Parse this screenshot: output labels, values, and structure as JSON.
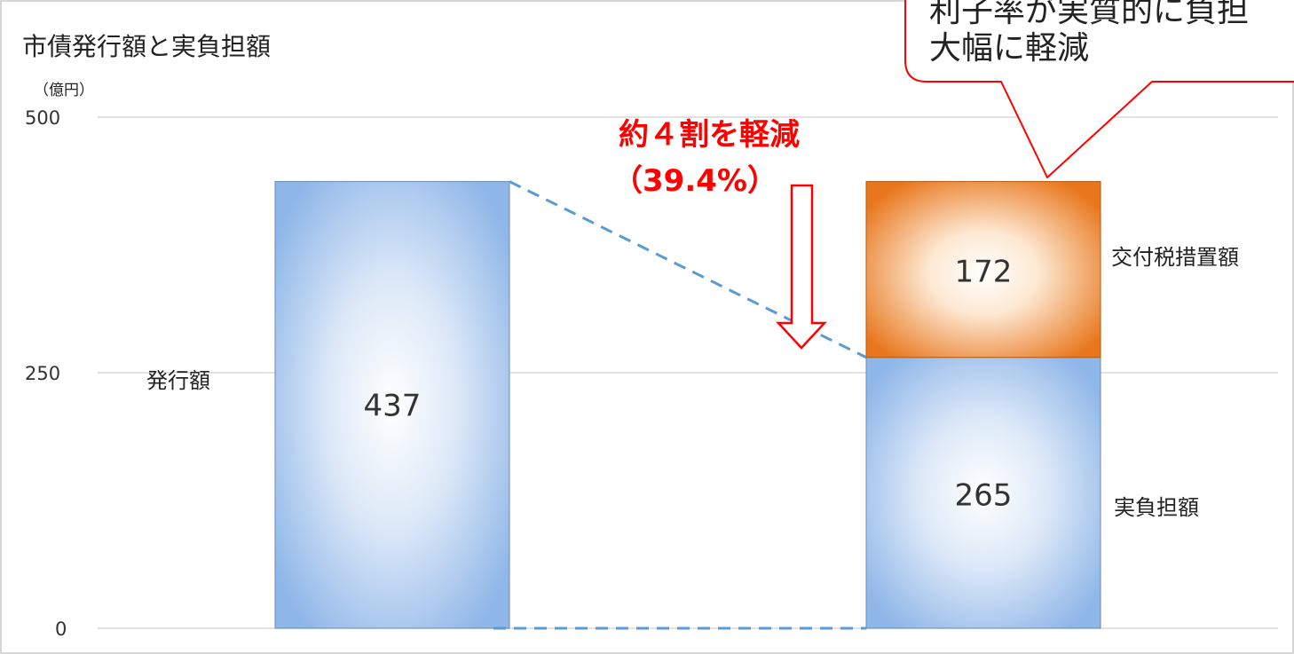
{
  "chart_data": {
    "type": "bar",
    "title": "市債発行額と実負担額",
    "unit_label": "（億円）",
    "ylim": [
      0,
      500
    ],
    "yticks": [
      "0",
      "250",
      "500"
    ],
    "grid": true,
    "categories": [
      "",
      ""
    ],
    "series": [
      {
        "name": "発行額",
        "values": [
          437,
          null
        ],
        "color": "#8fb6e8"
      },
      {
        "name": "実負担額",
        "values": [
          null,
          265
        ],
        "color": "#8fb6e8"
      },
      {
        "name": "交付税措置額",
        "values": [
          null,
          172
        ],
        "color": "#e8761c"
      }
    ],
    "data_labels": {
      "issue": "437",
      "actual": "265",
      "grant": "172"
    },
    "side_labels": {
      "issue": "発行額",
      "grant": "交付税措置額",
      "actual": "実負担額"
    },
    "annotations": {
      "reduction_line1": "約４割を軽減",
      "reduction_line2": "（39.4%）",
      "callout_line1": "利子率が実質的に負担",
      "callout_line2": "大幅に軽減"
    }
  }
}
